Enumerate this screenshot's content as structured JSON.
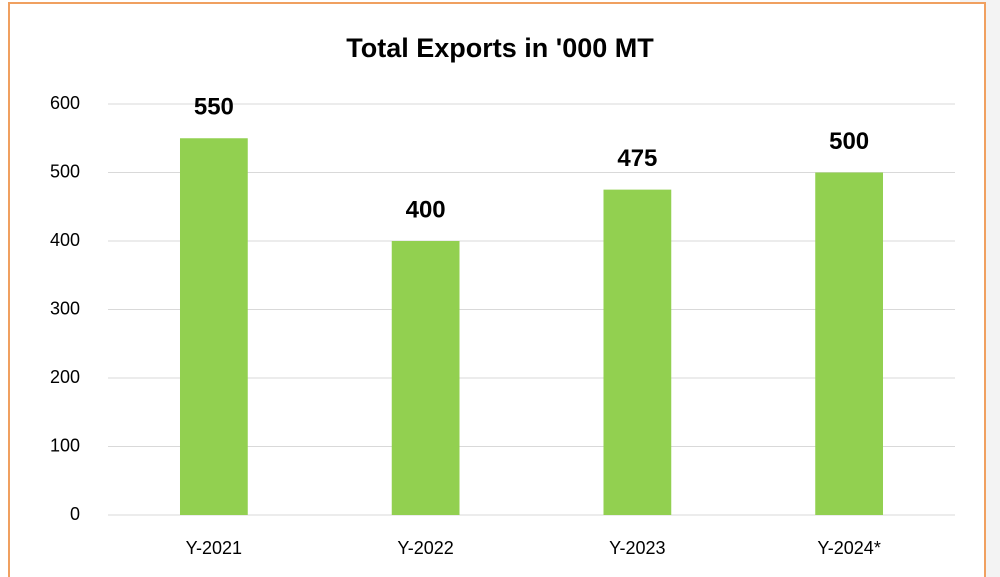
{
  "chart_data": {
    "type": "bar",
    "title": "Total Exports in '000 MT",
    "categories": [
      "Y-2021",
      "Y-2022",
      "Y-2023",
      "Y-2024*"
    ],
    "values": [
      550,
      400,
      475,
      500
    ],
    "color": "#92d050",
    "ylim": [
      0,
      600
    ],
    "yticks": [
      0,
      100,
      200,
      300,
      400,
      500,
      600
    ],
    "grid": true
  }
}
